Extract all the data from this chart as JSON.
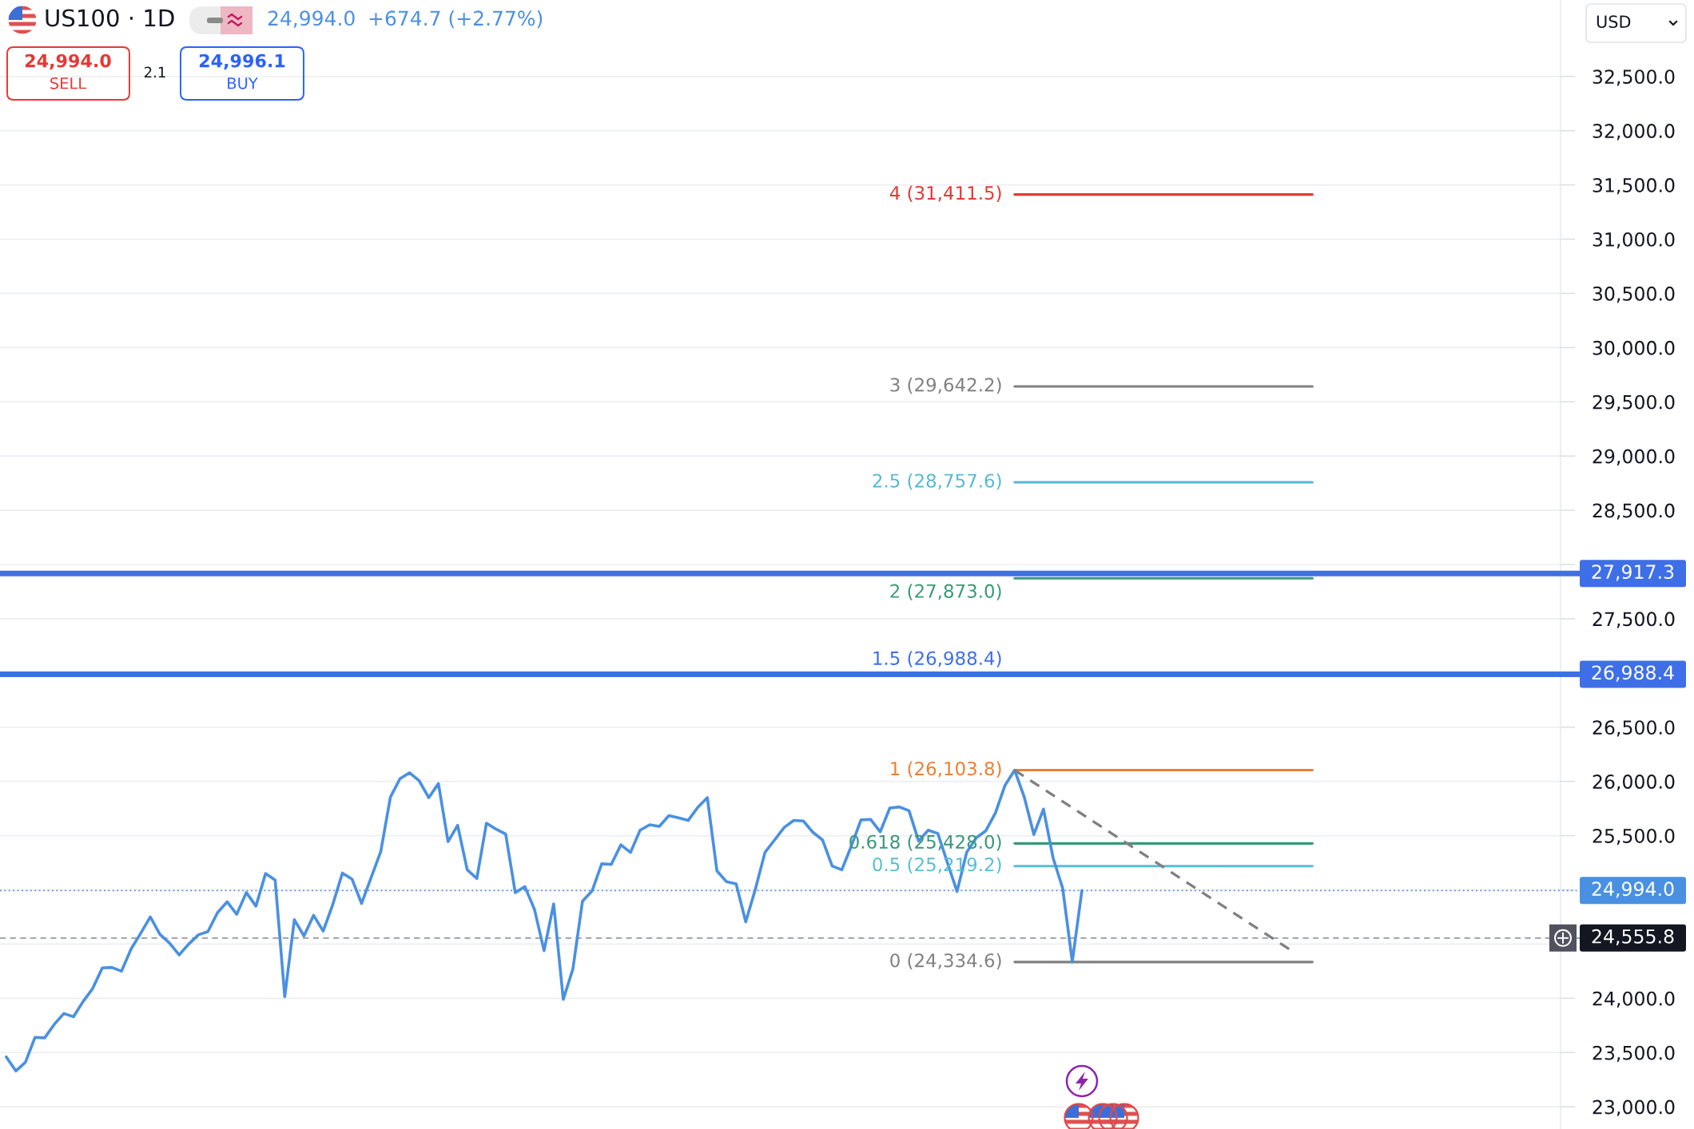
{
  "chart_data": {
    "type": "line",
    "title": "US100 · 1D",
    "annotations": [
      "24,994.0",
      "+674.7 (+2.77%)",
      "24,994.0",
      "SELL",
      "2.1",
      "24,996.1",
      "BUY",
      "USD",
      {
        "text": "1.5 (26,988.4)",
        "y": 26988.4
      }
    ],
    "categories": [
      null,
      null,
      null,
      null,
      null,
      null,
      null,
      null,
      null,
      null,
      null,
      null,
      null,
      null,
      null,
      null,
      null,
      null,
      null,
      null,
      null,
      null,
      null,
      null,
      null,
      null,
      null,
      null,
      null,
      null,
      null,
      null,
      null,
      null,
      null,
      null,
      null,
      null,
      null,
      null,
      null,
      null,
      null,
      null,
      null,
      null,
      null,
      null,
      null,
      null,
      null,
      null,
      null,
      null,
      null,
      null,
      null,
      null,
      null,
      null,
      null,
      null,
      null,
      null,
      null,
      null,
      null,
      null,
      null,
      null,
      null,
      null,
      null,
      null,
      null,
      null,
      null,
      null,
      null,
      null,
      null,
      null,
      null,
      null,
      null,
      null,
      null,
      null,
      null,
      null,
      null,
      null,
      null,
      null,
      null,
      null,
      null,
      null,
      null,
      null,
      null,
      null,
      null,
      null,
      null,
      null,
      null,
      null,
      null,
      null,
      null,
      null,
      null,
      null,
      null,
      null,
      null,
      null,
      null,
      null,
      null,
      null,
      null,
      null,
      null,
      null,
      null,
      null,
      null,
      null,
      null,
      null,
      null,
      null,
      null,
      null,
      null
    ],
    "ylim": [
      22795,
      33205
    ],
    "yticks": [
      {
        "value": 23000,
        "label": "23,000.0"
      },
      {
        "value": 23500,
        "label": "23,500.0"
      },
      {
        "value": 24000,
        "label": "24,000.0"
      },
      {
        "value": 24500,
        "label": null
      },
      {
        "value": 25000,
        "label": null
      },
      {
        "value": 25500,
        "label": "25,500.0"
      },
      {
        "value": 26000,
        "label": "26,000.0"
      },
      {
        "value": 26500,
        "label": "26,500.0"
      },
      {
        "value": 27000,
        "label": null
      },
      {
        "value": 27500,
        "label": "27,500.0"
      },
      {
        "value": 28000,
        "label": null
      },
      {
        "value": 28500,
        "label": "28,500.0"
      },
      {
        "value": 29000,
        "label": "29,000.0"
      },
      {
        "value": 29500,
        "label": "29,500.0"
      },
      {
        "value": 30000,
        "label": "30,000.0"
      },
      {
        "value": 30500,
        "label": "30,500.0"
      },
      {
        "value": 31000,
        "label": "31,000.0"
      },
      {
        "value": 31500,
        "label": "31,500.0"
      },
      {
        "value": 32000,
        "label": "32,000.0"
      },
      {
        "value": 32500,
        "label": "32,500.0"
      }
    ],
    "tick_labels": "y",
    "grid": "y",
    "series": [
      {
        "color": "#4a90e2",
        "values": [
          23460,
          23330,
          23410,
          23640,
          23635,
          23760,
          23860,
          23830,
          23970,
          24090,
          24280,
          24285,
          24250,
          24455,
          24600,
          24750,
          24590,
          24510,
          24400,
          24500,
          24585,
          24615,
          24790,
          24890,
          24775,
          24975,
          24850,
          25150,
          25090,
          24015,
          24725,
          24575,
          24765,
          24620,
          24865,
          25155,
          25100,
          24875,
          25115,
          25355,
          25855,
          26025,
          26080,
          26005,
          25850,
          25980,
          25445,
          25595,
          25185,
          25105,
          25615,
          25560,
          25515,
          24975,
          25030,
          24820,
          24440,
          24870,
          23990,
          24270,
          24895,
          24990,
          25240,
          25235,
          25415,
          25345,
          25550,
          25600,
          25585,
          25685,
          25665,
          25640,
          25760,
          25850,
          25175,
          25075,
          25055,
          24705,
          25005,
          25345,
          25460,
          25575,
          25640,
          25635,
          25530,
          25460,
          25220,
          25185,
          25405,
          25645,
          25650,
          25535,
          25755,
          25765,
          25730,
          25450,
          25550,
          25520,
          25250,
          24985,
          25345,
          25480,
          25545,
          25710,
          25965,
          26104,
          25855,
          25510,
          25745,
          25295,
          25015,
          24335,
          24994,
          null,
          null,
          null,
          null,
          null,
          null,
          null,
          null,
          null,
          null,
          null,
          null,
          null,
          null,
          null,
          null,
          null,
          null,
          null,
          null,
          null,
          null,
          null,
          null
        ]
      },
      {
        "name": "4 (31,411.5)",
        "color": "#e53935",
        "values": [
          null,
          null,
          null,
          null,
          null,
          null,
          null,
          null,
          null,
          null,
          null,
          null,
          null,
          null,
          null,
          null,
          null,
          null,
          null,
          null,
          null,
          null,
          null,
          null,
          null,
          null,
          null,
          null,
          null,
          null,
          null,
          null,
          null,
          null,
          null,
          null,
          null,
          null,
          null,
          null,
          null,
          null,
          null,
          null,
          null,
          null,
          null,
          null,
          null,
          null,
          null,
          null,
          null,
          null,
          null,
          null,
          null,
          null,
          null,
          null,
          null,
          null,
          null,
          null,
          null,
          null,
          null,
          null,
          null,
          null,
          null,
          null,
          null,
          null,
          null,
          null,
          null,
          null,
          null,
          null,
          null,
          null,
          null,
          null,
          null,
          null,
          null,
          null,
          null,
          null,
          null,
          null,
          null,
          null,
          null,
          null,
          null,
          null,
          null,
          null,
          null,
          null,
          null,
          null,
          null,
          31411.5,
          31411.5,
          31411.5,
          31411.5,
          31411.5,
          31411.5,
          31411.5,
          31411.5,
          31411.5,
          31411.5,
          31411.5,
          31411.5,
          31411.5,
          31411.5,
          31411.5,
          31411.5,
          31411.5,
          31411.5,
          31411.5,
          31411.5,
          31411.5,
          31411.5,
          31411.5,
          31411.5,
          31411.5,
          31411.5,
          31411.5,
          31411.5,
          31411.5,
          31411.5,
          31411.5,
          31411.5
        ]
      },
      {
        "name": "3 (29,642.2)",
        "color": "#808080",
        "values": [
          null,
          null,
          null,
          null,
          null,
          null,
          null,
          null,
          null,
          null,
          null,
          null,
          null,
          null,
          null,
          null,
          null,
          null,
          null,
          null,
          null,
          null,
          null,
          null,
          null,
          null,
          null,
          null,
          null,
          null,
          null,
          null,
          null,
          null,
          null,
          null,
          null,
          null,
          null,
          null,
          null,
          null,
          null,
          null,
          null,
          null,
          null,
          null,
          null,
          null,
          null,
          null,
          null,
          null,
          null,
          null,
          null,
          null,
          null,
          null,
          null,
          null,
          null,
          null,
          null,
          null,
          null,
          null,
          null,
          null,
          null,
          null,
          null,
          null,
          null,
          null,
          null,
          null,
          null,
          null,
          null,
          null,
          null,
          null,
          null,
          null,
          null,
          null,
          null,
          null,
          null,
          null,
          null,
          null,
          null,
          null,
          null,
          null,
          null,
          null,
          null,
          null,
          null,
          null,
          null,
          29642.2,
          29642.2,
          29642.2,
          29642.2,
          29642.2,
          29642.2,
          29642.2,
          29642.2,
          29642.2,
          29642.2,
          29642.2,
          29642.2,
          29642.2,
          29642.2,
          29642.2,
          29642.2,
          29642.2,
          29642.2,
          29642.2,
          29642.2,
          29642.2,
          29642.2,
          29642.2,
          29642.2,
          29642.2,
          29642.2,
          29642.2,
          29642.2,
          29642.2,
          29642.2,
          29642.2,
          29642.2
        ]
      },
      {
        "name": "2.5 (28,757.6)",
        "color": "#56b8d6",
        "values": [
          null,
          null,
          null,
          null,
          null,
          null,
          null,
          null,
          null,
          null,
          null,
          null,
          null,
          null,
          null,
          null,
          null,
          null,
          null,
          null,
          null,
          null,
          null,
          null,
          null,
          null,
          null,
          null,
          null,
          null,
          null,
          null,
          null,
          null,
          null,
          null,
          null,
          null,
          null,
          null,
          null,
          null,
          null,
          null,
          null,
          null,
          null,
          null,
          null,
          null,
          null,
          null,
          null,
          null,
          null,
          null,
          null,
          null,
          null,
          null,
          null,
          null,
          null,
          null,
          null,
          null,
          null,
          null,
          null,
          null,
          null,
          null,
          null,
          null,
          null,
          null,
          null,
          null,
          null,
          null,
          null,
          null,
          null,
          null,
          null,
          null,
          null,
          null,
          null,
          null,
          null,
          null,
          null,
          null,
          null,
          null,
          null,
          null,
          null,
          null,
          null,
          null,
          null,
          null,
          null,
          28757.6,
          28757.6,
          28757.6,
          28757.6,
          28757.6,
          28757.6,
          28757.6,
          28757.6,
          28757.6,
          28757.6,
          28757.6,
          28757.6,
          28757.6,
          28757.6,
          28757.6,
          28757.6,
          28757.6,
          28757.6,
          28757.6,
          28757.6,
          28757.6,
          28757.6,
          28757.6,
          28757.6,
          28757.6,
          28757.6,
          28757.6,
          28757.6,
          28757.6,
          28757.6,
          28757.6,
          28757.6
        ]
      },
      {
        "name": "2 (27,873.0)",
        "color": "#389978",
        "values": [
          null,
          null,
          null,
          null,
          null,
          null,
          null,
          null,
          null,
          null,
          null,
          null,
          null,
          null,
          null,
          null,
          null,
          null,
          null,
          null,
          null,
          null,
          null,
          null,
          null,
          null,
          null,
          null,
          null,
          null,
          null,
          null,
          null,
          null,
          null,
          null,
          null,
          null,
          null,
          null,
          null,
          null,
          null,
          null,
          null,
          null,
          null,
          null,
          null,
          null,
          null,
          null,
          null,
          null,
          null,
          null,
          null,
          null,
          null,
          null,
          null,
          null,
          null,
          null,
          null,
          null,
          null,
          null,
          null,
          null,
          null,
          null,
          null,
          null,
          null,
          null,
          null,
          null,
          null,
          null,
          null,
          null,
          null,
          null,
          null,
          null,
          null,
          null,
          null,
          null,
          null,
          null,
          null,
          null,
          null,
          null,
          null,
          null,
          null,
          null,
          null,
          null,
          null,
          null,
          null,
          27873.0,
          27873.0,
          27873.0,
          27873.0,
          27873.0,
          27873.0,
          27873.0,
          27873.0,
          27873.0,
          27873.0,
          27873.0,
          27873.0,
          27873.0,
          27873.0,
          27873.0,
          27873.0,
          27873.0,
          27873.0,
          27873.0,
          27873.0,
          27873.0,
          27873.0,
          27873.0,
          27873.0,
          27873.0,
          27873.0,
          27873.0,
          27873.0,
          27873.0,
          27873.0,
          27873.0,
          27873.0
        ]
      },
      {
        "name": "1 (26,103.8)",
        "color": "#ec7f34",
        "values": [
          null,
          null,
          null,
          null,
          null,
          null,
          null,
          null,
          null,
          null,
          null,
          null,
          null,
          null,
          null,
          null,
          null,
          null,
          null,
          null,
          null,
          null,
          null,
          null,
          null,
          null,
          null,
          null,
          null,
          null,
          null,
          null,
          null,
          null,
          null,
          null,
          null,
          null,
          null,
          null,
          null,
          null,
          null,
          null,
          null,
          null,
          null,
          null,
          null,
          null,
          null,
          null,
          null,
          null,
          null,
          null,
          null,
          null,
          null,
          null,
          null,
          null,
          null,
          null,
          null,
          null,
          null,
          null,
          null,
          null,
          null,
          null,
          null,
          null,
          null,
          null,
          null,
          null,
          null,
          null,
          null,
          null,
          null,
          null,
          null,
          null,
          null,
          null,
          null,
          null,
          null,
          null,
          null,
          null,
          null,
          null,
          null,
          null,
          null,
          null,
          null,
          null,
          null,
          null,
          null,
          26103.8,
          26103.8,
          26103.8,
          26103.8,
          26103.8,
          26103.8,
          26103.8,
          26103.8,
          26103.8,
          26103.8,
          26103.8,
          26103.8,
          26103.8,
          26103.8,
          26103.8,
          26103.8,
          26103.8,
          26103.8,
          26103.8,
          26103.8,
          26103.8,
          26103.8,
          26103.8,
          26103.8,
          26103.8,
          26103.8,
          26103.8,
          26103.8,
          26103.8,
          26103.8,
          26103.8,
          26103.8
        ]
      },
      {
        "name": "0.618 (25,428.0)",
        "color": "#389978",
        "values": [
          null,
          null,
          null,
          null,
          null,
          null,
          null,
          null,
          null,
          null,
          null,
          null,
          null,
          null,
          null,
          null,
          null,
          null,
          null,
          null,
          null,
          null,
          null,
          null,
          null,
          null,
          null,
          null,
          null,
          null,
          null,
          null,
          null,
          null,
          null,
          null,
          null,
          null,
          null,
          null,
          null,
          null,
          null,
          null,
          null,
          null,
          null,
          null,
          null,
          null,
          null,
          null,
          null,
          null,
          null,
          null,
          null,
          null,
          null,
          null,
          null,
          null,
          null,
          null,
          null,
          null,
          null,
          null,
          null,
          null,
          null,
          null,
          null,
          null,
          null,
          null,
          null,
          null,
          null,
          null,
          null,
          null,
          null,
          null,
          null,
          null,
          null,
          null,
          null,
          null,
          null,
          null,
          null,
          null,
          null,
          null,
          null,
          null,
          null,
          null,
          null,
          null,
          null,
          null,
          null,
          25428.0,
          25428.0,
          25428.0,
          25428.0,
          25428.0,
          25428.0,
          25428.0,
          25428.0,
          25428.0,
          25428.0,
          25428.0,
          25428.0,
          25428.0,
          25428.0,
          25428.0,
          25428.0,
          25428.0,
          25428.0,
          25428.0,
          25428.0,
          25428.0,
          25428.0,
          25428.0,
          25428.0,
          25428.0,
          25428.0,
          25428.0,
          25428.0,
          25428.0,
          25428.0,
          25428.0,
          25428.0
        ]
      },
      {
        "name": "0.5 (25,219.2)",
        "color": "#56bfd6",
        "values": [
          null,
          null,
          null,
          null,
          null,
          null,
          null,
          null,
          null,
          null,
          null,
          null,
          null,
          null,
          null,
          null,
          null,
          null,
          null,
          null,
          null,
          null,
          null,
          null,
          null,
          null,
          null,
          null,
          null,
          null,
          null,
          null,
          null,
          null,
          null,
          null,
          null,
          null,
          null,
          null,
          null,
          null,
          null,
          null,
          null,
          null,
          null,
          null,
          null,
          null,
          null,
          null,
          null,
          null,
          null,
          null,
          null,
          null,
          null,
          null,
          null,
          null,
          null,
          null,
          null,
          null,
          null,
          null,
          null,
          null,
          null,
          null,
          null,
          null,
          null,
          null,
          null,
          null,
          null,
          null,
          null,
          null,
          null,
          null,
          null,
          null,
          null,
          null,
          null,
          null,
          null,
          null,
          null,
          null,
          null,
          null,
          null,
          null,
          null,
          null,
          null,
          null,
          null,
          null,
          null,
          25219.2,
          25219.2,
          25219.2,
          25219.2,
          25219.2,
          25219.2,
          25219.2,
          25219.2,
          25219.2,
          25219.2,
          25219.2,
          25219.2,
          25219.2,
          25219.2,
          25219.2,
          25219.2,
          25219.2,
          25219.2,
          25219.2,
          25219.2,
          25219.2,
          25219.2,
          25219.2,
          25219.2,
          25219.2,
          25219.2,
          25219.2,
          25219.2,
          25219.2,
          25219.2,
          25219.2,
          25219.2
        ]
      },
      {
        "name": "0 (24,334.6)",
        "color": "#808080",
        "values": [
          null,
          null,
          null,
          null,
          null,
          null,
          null,
          null,
          null,
          null,
          null,
          null,
          null,
          null,
          null,
          null,
          null,
          null,
          null,
          null,
          null,
          null,
          null,
          null,
          null,
          null,
          null,
          null,
          null,
          null,
          null,
          null,
          null,
          null,
          null,
          null,
          null,
          null,
          null,
          null,
          null,
          null,
          null,
          null,
          null,
          null,
          null,
          null,
          null,
          null,
          null,
          null,
          null,
          null,
          null,
          null,
          null,
          null,
          null,
          null,
          null,
          null,
          null,
          null,
          null,
          null,
          null,
          null,
          null,
          null,
          null,
          null,
          null,
          null,
          null,
          null,
          null,
          null,
          null,
          null,
          null,
          null,
          null,
          null,
          null,
          null,
          null,
          null,
          null,
          null,
          null,
          null,
          null,
          null,
          null,
          null,
          null,
          null,
          null,
          null,
          null,
          null,
          null,
          null,
          null,
          24334.6,
          24334.6,
          24334.6,
          24334.6,
          24334.6,
          24334.6,
          24334.6,
          24334.6,
          24334.6,
          24334.6,
          24334.6,
          24334.6,
          24334.6,
          24334.6,
          24334.6,
          24334.6,
          24334.6,
          24334.6,
          24334.6,
          24334.6,
          24334.6,
          24334.6,
          24334.6,
          24334.6,
          24334.6,
          24334.6,
          24334.6,
          24334.6,
          24334.6,
          24334.6,
          24334.6,
          24334.6
        ]
      },
      {
        "type": "line",
        "color": "#808080",
        "line_style": "dashed",
        "values": [
          null,
          null,
          null,
          null,
          null,
          null,
          null,
          null,
          null,
          null,
          null,
          null,
          null,
          null,
          null,
          null,
          null,
          null,
          null,
          null,
          null,
          null,
          null,
          null,
          null,
          null,
          null,
          null,
          null,
          null,
          null,
          null,
          null,
          null,
          null,
          null,
          null,
          null,
          null,
          null,
          null,
          null,
          null,
          null,
          null,
          null,
          null,
          null,
          null,
          null,
          null,
          null,
          null,
          null,
          null,
          null,
          null,
          null,
          null,
          null,
          null,
          null,
          null,
          null,
          null,
          null,
          null,
          null,
          null,
          null,
          null,
          null,
          null,
          null,
          null,
          null,
          null,
          null,
          null,
          null,
          null,
          null,
          null,
          null,
          null,
          null,
          null,
          null,
          null,
          null,
          null,
          null,
          null,
          null,
          null,
          null,
          null,
          null,
          null,
          null,
          null,
          null,
          null,
          null,
          null,
          26103.8,
          null,
          null,
          null,
          null,
          null,
          null,
          null,
          null,
          null,
          null,
          null,
          null,
          null,
          null,
          null,
          null,
          null,
          null,
          null,
          null,
          null,
          null,
          null,
          null,
          null,
          null,
          null,
          null,
          24430,
          null,
          null
        ]
      }
    ],
    "ref_lines": [
      {
        "axis": "y",
        "value": 27917.3,
        "label": "27,917.3",
        "color": "#3f6fe6",
        "line_style": "solid"
      },
      {
        "axis": "y",
        "value": 26988.4,
        "label": "26,988.4",
        "color": "#3f6fe6",
        "line_style": "solid"
      },
      {
        "axis": "y",
        "value": 24994.0,
        "label": "24,994.0",
        "color": "#4a90e2",
        "line_style": "dotted"
      },
      {
        "axis": "y",
        "value": 24555.8,
        "label": "24,555.8",
        "color": "#9598a1",
        "line_style": "dashed"
      }
    ]
  }
}
